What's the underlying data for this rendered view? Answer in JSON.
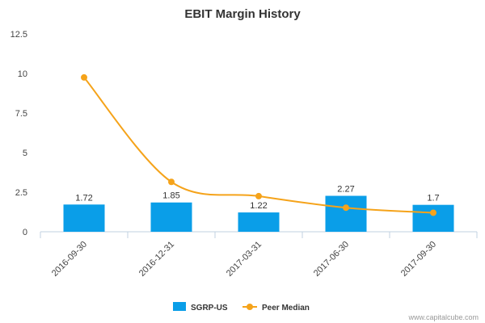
{
  "chart_data": {
    "type": "bar",
    "title": "EBIT Margin History",
    "categories": [
      "2016-09-30",
      "2016-12-31",
      "2017-03-31",
      "2017-06-30",
      "2017-09-30"
    ],
    "y_ticks": [
      "0",
      "2.5",
      "5",
      "7.5",
      "10",
      "12.5"
    ],
    "ylim": [
      0,
      12.5
    ],
    "grid": false,
    "legend_position": "bottom-center",
    "series": [
      {
        "name": "SGRP-US",
        "type": "bar",
        "color": "#0a9ee8",
        "values": [
          1.72,
          1.85,
          1.22,
          2.27,
          1.7
        ],
        "labels": [
          "1.72",
          "1.85",
          "1.22",
          "2.27",
          "1.7"
        ]
      },
      {
        "name": "Peer Median",
        "type": "line",
        "color": "#f5a31a",
        "values": [
          9.75,
          3.15,
          2.25,
          1.52,
          1.2
        ]
      }
    ]
  },
  "credit": "www.capitalcube.com"
}
